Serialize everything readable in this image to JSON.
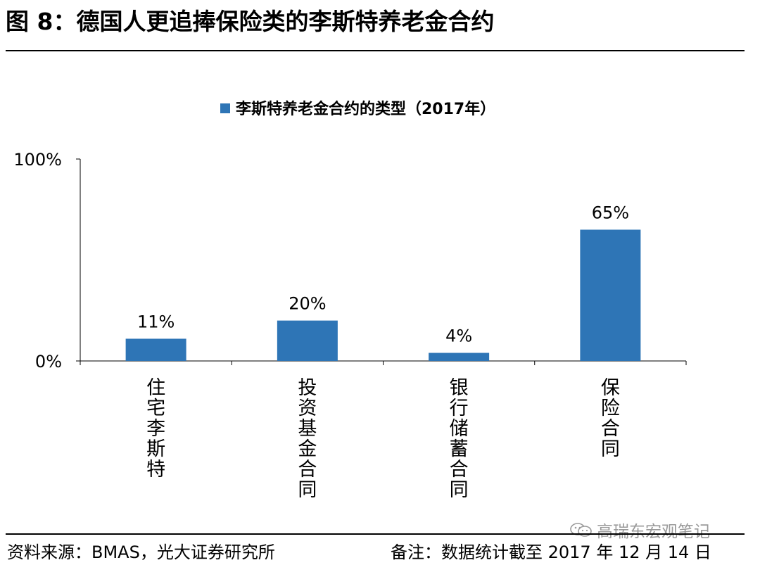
{
  "figure": {
    "title": "图 8：德国人更追捧保险类的李斯特养老金合约",
    "source": "资料来源：BMAS，光大证券研究所",
    "note": "备注：数据统计截至 2017 年 12 月 14 日",
    "watermark": "高瑞东宏观笔记",
    "watermark_icon": "wechat-icon"
  },
  "chart_data": {
    "type": "bar",
    "title": "",
    "xlabel": "",
    "ylabel": "",
    "categories": [
      "住宅李斯特",
      "投资基金合同",
      "银行储蓄合同",
      "保险合同"
    ],
    "series": [
      {
        "name": "李斯特养老金合约的类型（2017年）",
        "values": [
          11,
          20,
          4,
          65
        ],
        "color": "#2E75B6"
      }
    ],
    "data_labels": [
      "11%",
      "20%",
      "4%",
      "65%"
    ],
    "ylim": [
      0,
      100
    ],
    "yticks": [
      0,
      100
    ],
    "ytick_labels": [
      "0%",
      "100%"
    ],
    "legend": "top-center",
    "grid": false
  }
}
